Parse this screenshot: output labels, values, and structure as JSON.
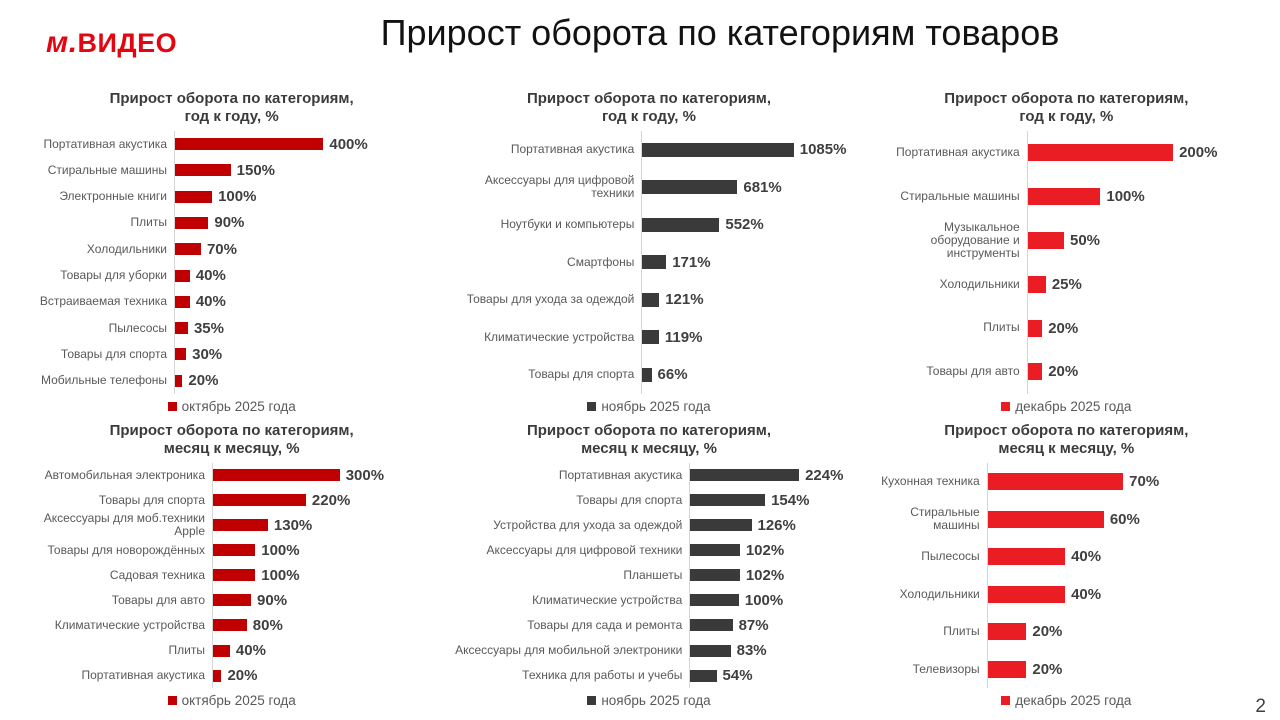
{
  "header": {
    "logo_prefix": "м.",
    "logo_suffix": "ВИДЕО",
    "title": "Прирост оборота по категориям товаров",
    "page_number": "2"
  },
  "colors": {
    "october_red": "#c00000",
    "november_dark": "#3a3a3a",
    "december_red": "#ea1d25",
    "logo_red": "#e30611",
    "axis_gray": "#d6d6d6"
  },
  "chart_data": [
    {
      "type": "bar",
      "orientation": "horizontal",
      "title_line1": "Прирост оборота по категориям,",
      "title_line2": "год к году, %",
      "legend": "октябрь 2025 года",
      "legend_position": "bottom",
      "bar_color": "#c00000",
      "categories": [
        "Портативная акустика",
        "Стиральные машины",
        "Электронные книги",
        "Плиты",
        "Холодильники",
        "Товары для уборки",
        "Встраиваемая техника",
        "Пылесосы",
        "Товары для спорта",
        "Мобильные телефоны"
      ],
      "values": [
        400,
        150,
        100,
        90,
        70,
        40,
        40,
        35,
        30,
        20
      ],
      "value_labels": [
        "400%",
        "150%",
        "100%",
        "90%",
        "70%",
        "40%",
        "40%",
        "35%",
        "30%",
        "20%"
      ]
    },
    {
      "type": "bar",
      "orientation": "horizontal",
      "title_line1": "Прирост оборота по категориям,",
      "title_line2": "год к году, %",
      "legend": "ноябрь 2025 года",
      "legend_position": "bottom",
      "bar_color": "#3a3a3a",
      "categories": [
        "Портативная акустика",
        "Аксессуары для цифровой техники",
        "Ноутбуки и компьютеры",
        "Смартфоны",
        "Товары для ухода за одеждой",
        "Климатические устройства",
        "Товары для спорта"
      ],
      "values": [
        1085,
        681,
        552,
        171,
        121,
        119,
        66
      ],
      "value_labels": [
        "1085%",
        "681%",
        "552%",
        "171%",
        "121%",
        "119%",
        "66%"
      ]
    },
    {
      "type": "bar",
      "orientation": "horizontal",
      "title_line1": "Прирост оборота по категориям,",
      "title_line2": "год к году, %",
      "legend": "декабрь 2025 года",
      "legend_position": "bottom",
      "bar_color": "#ea1d25",
      "categories": [
        "Портативная акустика",
        "Стиральные машины",
        "Музыкальное оборудование и инструменты",
        "Холодильники",
        "Плиты",
        "Товары для авто"
      ],
      "values": [
        200,
        100,
        50,
        25,
        20,
        20
      ],
      "value_labels": [
        "200%",
        "100%",
        "50%",
        "25%",
        "20%",
        "20%"
      ]
    },
    {
      "type": "bar",
      "orientation": "horizontal",
      "title_line1": "Прирост оборота по категориям,",
      "title_line2": "месяц к месяцу, %",
      "legend": "октябрь 2025 года",
      "legend_position": "bottom",
      "bar_color": "#c00000",
      "categories": [
        "Автомобильная электроника",
        "Товары для спорта",
        "Аксессуары для моб.техники Apple",
        "Товары для новорождённых",
        "Садовая техника",
        "Товары для авто",
        "Климатические устройства",
        "Плиты",
        "Портативная акустика"
      ],
      "values": [
        300,
        220,
        130,
        100,
        100,
        90,
        80,
        40,
        20
      ],
      "value_labels": [
        "300%",
        "220%",
        "130%",
        "100%",
        "100%",
        "90%",
        "80%",
        "40%",
        "20%"
      ]
    },
    {
      "type": "bar",
      "orientation": "horizontal",
      "title_line1": "Прирост оборота по категориям,",
      "title_line2": "месяц к месяцу, %",
      "legend": "ноябрь 2025 года",
      "legend_position": "bottom",
      "bar_color": "#3a3a3a",
      "categories": [
        "Портативная акустика",
        "Товары для спорта",
        "Устройства для ухода за одеждой",
        "Аксессуары для цифровой техники",
        "Планшеты",
        "Климатические устройства",
        "Товары для сада и ремонта",
        "Аксессуары для мобильной электроники",
        "Техника для работы и учебы"
      ],
      "values": [
        224,
        154,
        126,
        102,
        102,
        100,
        87,
        83,
        54
      ],
      "value_labels": [
        "224%",
        "154%",
        "126%",
        "102%",
        "102%",
        "100%",
        "87%",
        "83%",
        "54%"
      ]
    },
    {
      "type": "bar",
      "orientation": "horizontal",
      "title_line1": "Прирост оборота по категориям,",
      "title_line2": "месяц к месяцу, %",
      "legend": "декабрь 2025 года",
      "legend_position": "bottom",
      "bar_color": "#ea1d25",
      "categories": [
        "Кухонная техника",
        "Стиральные машины",
        "Пылесосы",
        "Холодильники",
        "Плиты",
        "Телевизоры"
      ],
      "values": [
        70,
        60,
        40,
        40,
        20,
        20
      ],
      "value_labels": [
        "70%",
        "60%",
        "40%",
        "40%",
        "20%",
        "20%"
      ]
    }
  ]
}
